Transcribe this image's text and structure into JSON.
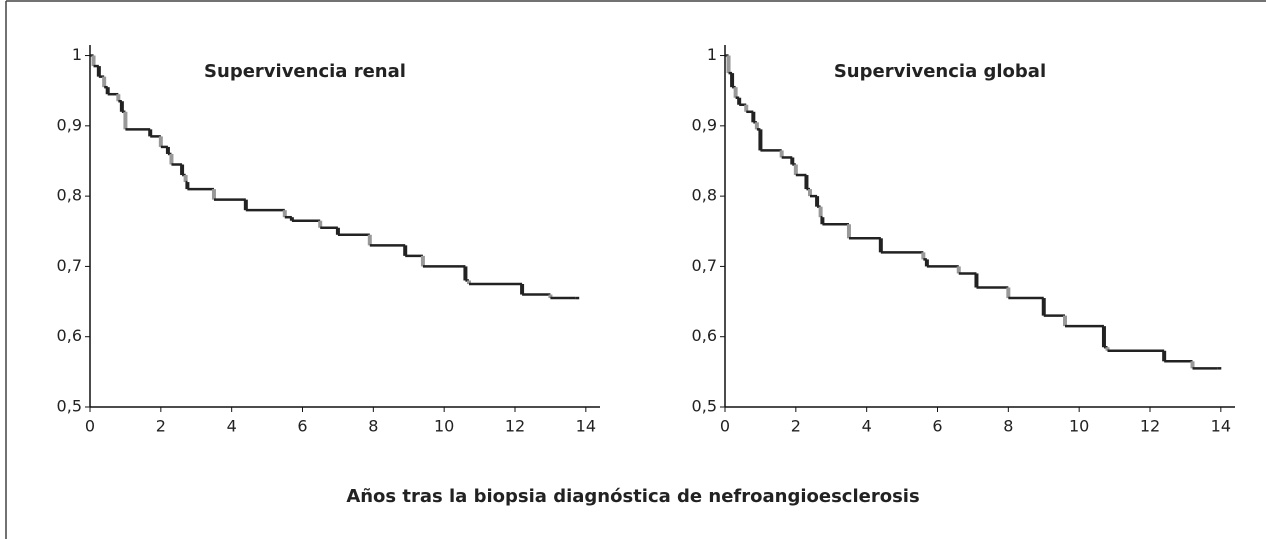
{
  "chart_data": [
    {
      "type": "line",
      "step": true,
      "title": "Supervivencia renal",
      "color": "#222",
      "x": [
        0,
        0.1,
        0.25,
        0.4,
        0.5,
        0.8,
        0.9,
        1.0,
        1.7,
        2.0,
        2.2,
        2.3,
        2.6,
        2.7,
        2.75,
        3.5,
        4.4,
        5.5,
        5.7,
        6.5,
        7.0,
        7.9,
        8.9,
        9.4,
        10.6,
        10.7,
        12.2,
        13.0,
        13.7
      ],
      "values": [
        1,
        0.985,
        0.97,
        0.955,
        0.945,
        0.935,
        0.92,
        0.895,
        0.885,
        0.87,
        0.86,
        0.845,
        0.83,
        0.82,
        0.81,
        0.795,
        0.78,
        0.77,
        0.765,
        0.755,
        0.745,
        0.73,
        0.715,
        0.7,
        0.68,
        0.675,
        0.66,
        0.655,
        0.655
      ],
      "xlim": [
        0,
        14.4
      ],
      "ylim": [
        0.5,
        1.015
      ],
      "xticks": [
        0,
        2,
        4,
        6,
        8,
        10,
        12,
        14
      ],
      "yticks": [
        {
          "value": 0.5,
          "label": "0,5"
        },
        {
          "value": 0.6,
          "label": "0,6"
        },
        {
          "value": 0.7,
          "label": "0,7"
        },
        {
          "value": 0.8,
          "label": "0,8"
        },
        {
          "value": 0.9,
          "label": "0,9"
        },
        1
      ]
    },
    {
      "type": "line",
      "step": true,
      "title": "Supervivencia global",
      "color": "#222",
      "x": [
        0,
        0.1,
        0.2,
        0.3,
        0.4,
        0.6,
        0.8,
        0.9,
        1.0,
        1.6,
        1.9,
        2.0,
        2.3,
        2.4,
        2.6,
        2.7,
        2.75,
        3.5,
        4.4,
        5.6,
        5.7,
        6.6,
        7.1,
        8.0,
        9.0,
        9.6,
        10.7,
        10.8,
        12.4,
        13.2,
        13.9
      ],
      "values": [
        1,
        0.975,
        0.955,
        0.94,
        0.93,
        0.92,
        0.905,
        0.895,
        0.865,
        0.855,
        0.845,
        0.83,
        0.81,
        0.8,
        0.785,
        0.77,
        0.76,
        0.74,
        0.72,
        0.71,
        0.7,
        0.69,
        0.67,
        0.655,
        0.63,
        0.615,
        0.585,
        0.58,
        0.565,
        0.555,
        0.555
      ],
      "xlim": [
        0,
        14.4
      ],
      "ylim": [
        0.5,
        1.015
      ],
      "xticks": [
        0,
        2,
        4,
        6,
        8,
        10,
        12,
        14
      ],
      "yticks": [
        {
          "value": 0.5,
          "label": "0,5"
        },
        {
          "value": 0.6,
          "label": "0,6"
        },
        {
          "value": 0.7,
          "label": "0,7"
        },
        {
          "value": 0.8,
          "label": "0,8"
        },
        {
          "value": 0.9,
          "label": "0,9"
        },
        1
      ]
    }
  ],
  "xlabel": "Años tras la biopsia diagnóstica de nefroangioesclerosis"
}
